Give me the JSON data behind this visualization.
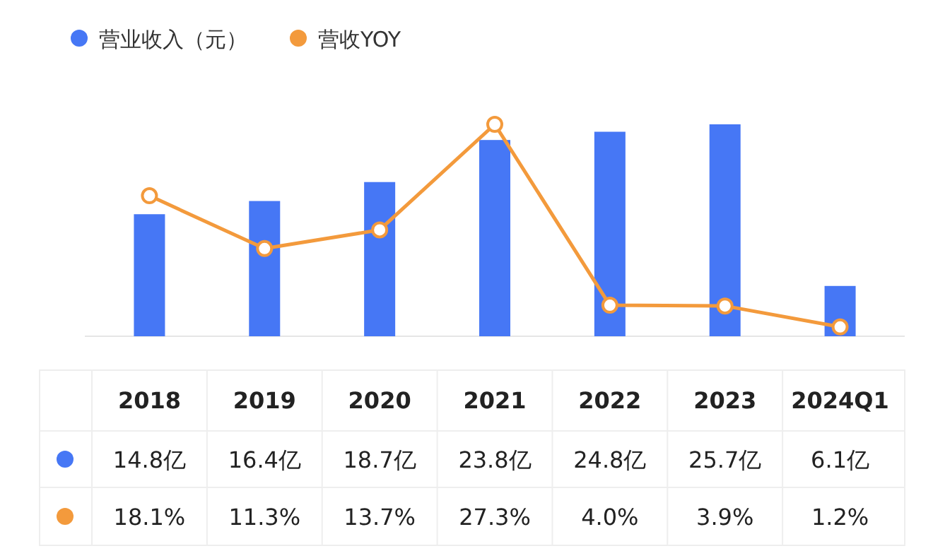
{
  "chart_data": {
    "type": "bar",
    "categories": [
      "2018",
      "2019",
      "2020",
      "2021",
      "2022",
      "2023",
      "2024Q1"
    ],
    "legend": "top left",
    "series": [
      {
        "name": "营业收入（元）",
        "color": "#4677f5",
        "values": [
          14.8,
          16.4,
          18.7,
          23.8,
          24.8,
          25.7,
          6.1
        ],
        "value_labels": [
          "14.8亿",
          "16.4亿",
          "18.7亿",
          "23.8亿",
          "24.8亿",
          "25.7亿",
          "6.1亿"
        ]
      },
      {
        "name": "营收YOY",
        "type": "line",
        "axis": "y2",
        "marker": "circle",
        "color": "#f39a3c",
        "values": [
          18.1,
          11.3,
          13.7,
          27.3,
          4.0,
          3.9,
          1.2
        ],
        "value_labels": [
          "18.1%",
          "11.3%",
          "13.7%",
          "27.3%",
          "4.0%",
          "3.9%",
          "1.2%"
        ]
      }
    ]
  }
}
